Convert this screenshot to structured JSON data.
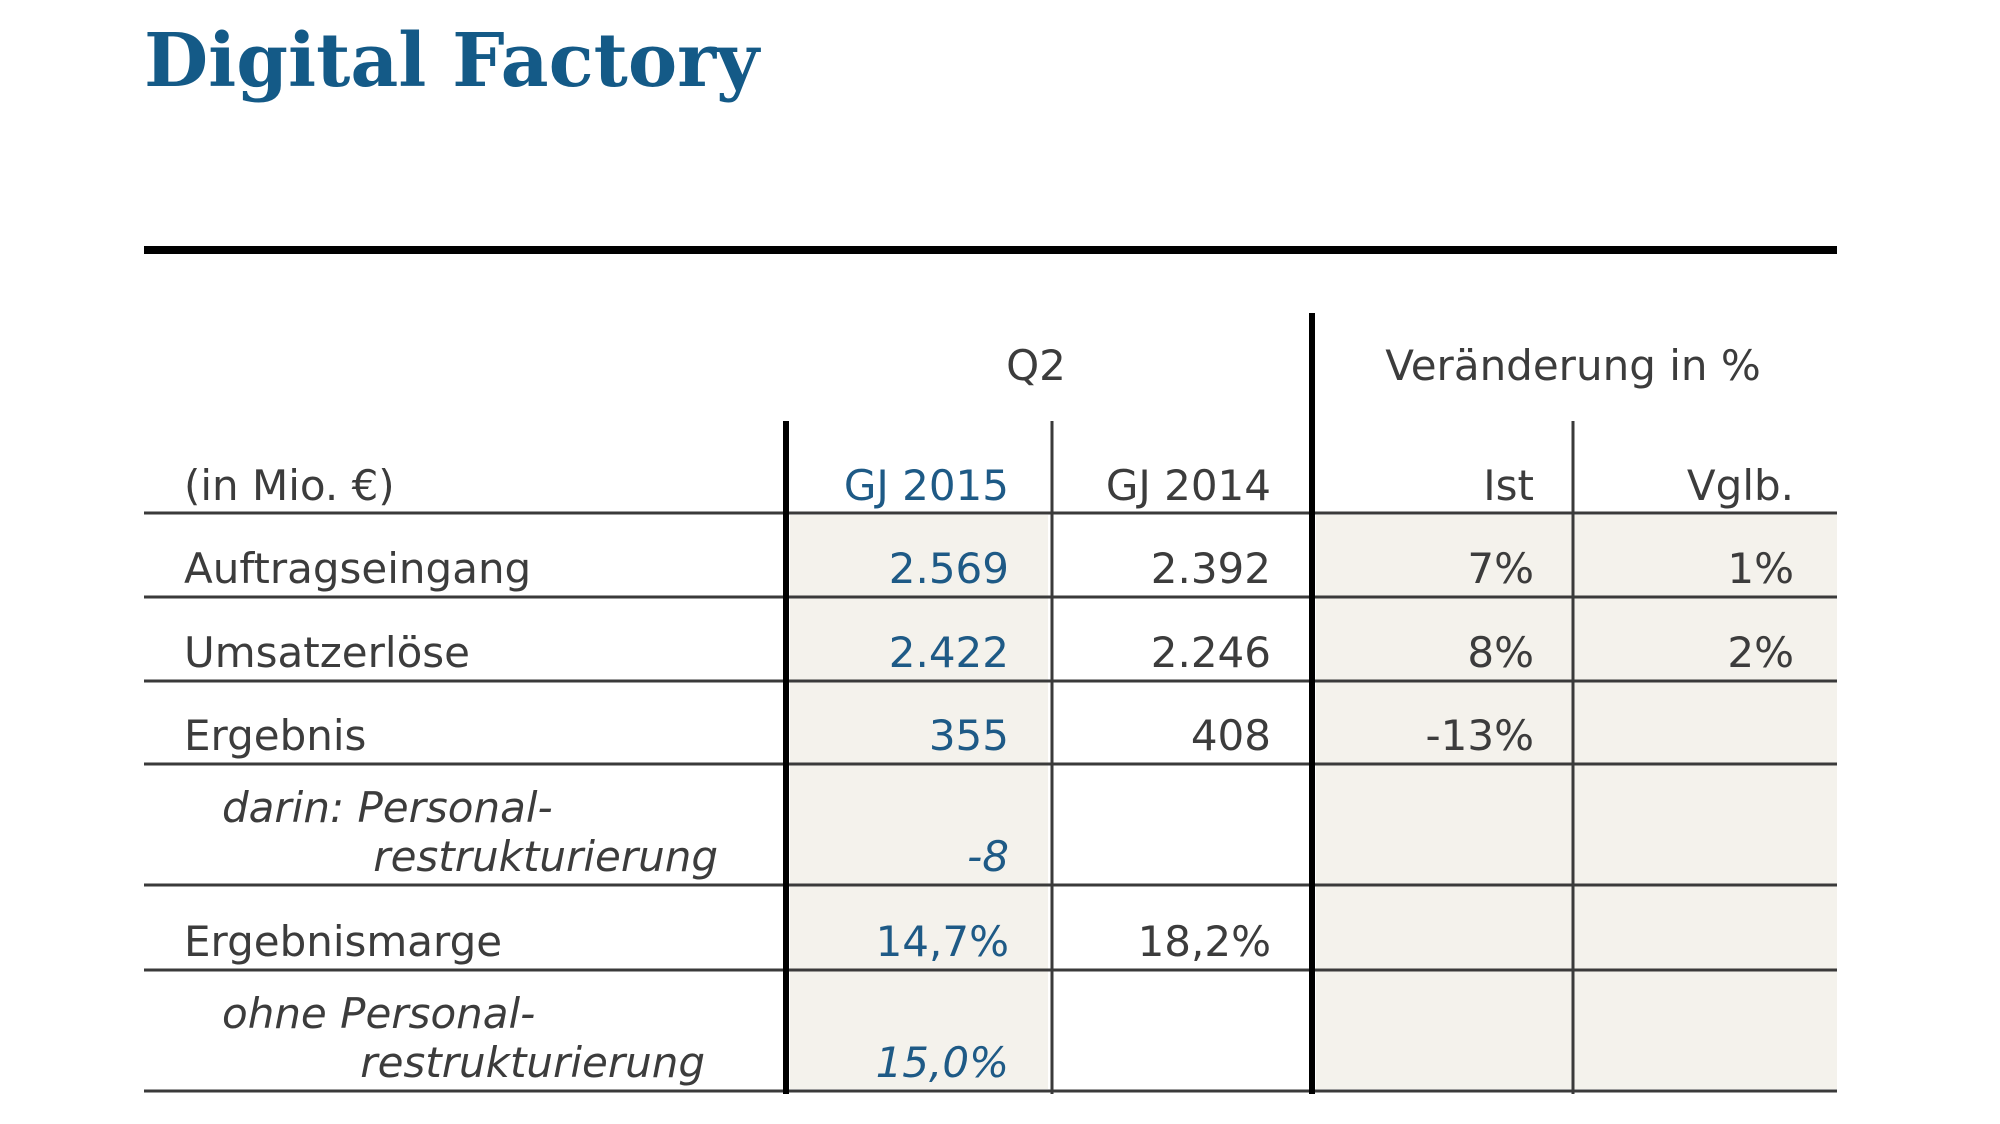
{
  "title": "Digital Factory",
  "table": {
    "group_headers": [
      "Q2",
      "Veränderung in %"
    ],
    "unit": "(in Mio. €)",
    "columns": [
      "GJ 2015",
      "GJ 2014",
      "Ist",
      "Vglb."
    ],
    "rows": [
      {
        "label": [
          "Auftragseingang"
        ],
        "cells": [
          "2.569",
          "2.392",
          "7%",
          "1%"
        ]
      },
      {
        "label": [
          "Umsatzerlöse"
        ],
        "cells": [
          "2.422",
          "2.246",
          "8%",
          "2%"
        ]
      },
      {
        "label": [
          "Ergebnis"
        ],
        "cells": [
          "355",
          "408",
          "-13%",
          null
        ]
      },
      {
        "label": [
          "darin: Personal-",
          "restrukturierung"
        ],
        "cells": [
          "-8",
          null,
          null,
          null
        ]
      },
      {
        "label": [
          "Ergebnismarge"
        ],
        "cells": [
          "14,7%",
          "18,2%",
          null,
          null
        ]
      },
      {
        "label": [
          "ohne Personal-",
          "restrukturierung"
        ],
        "cells": [
          "15,0%",
          null,
          null,
          null
        ]
      }
    ]
  }
}
